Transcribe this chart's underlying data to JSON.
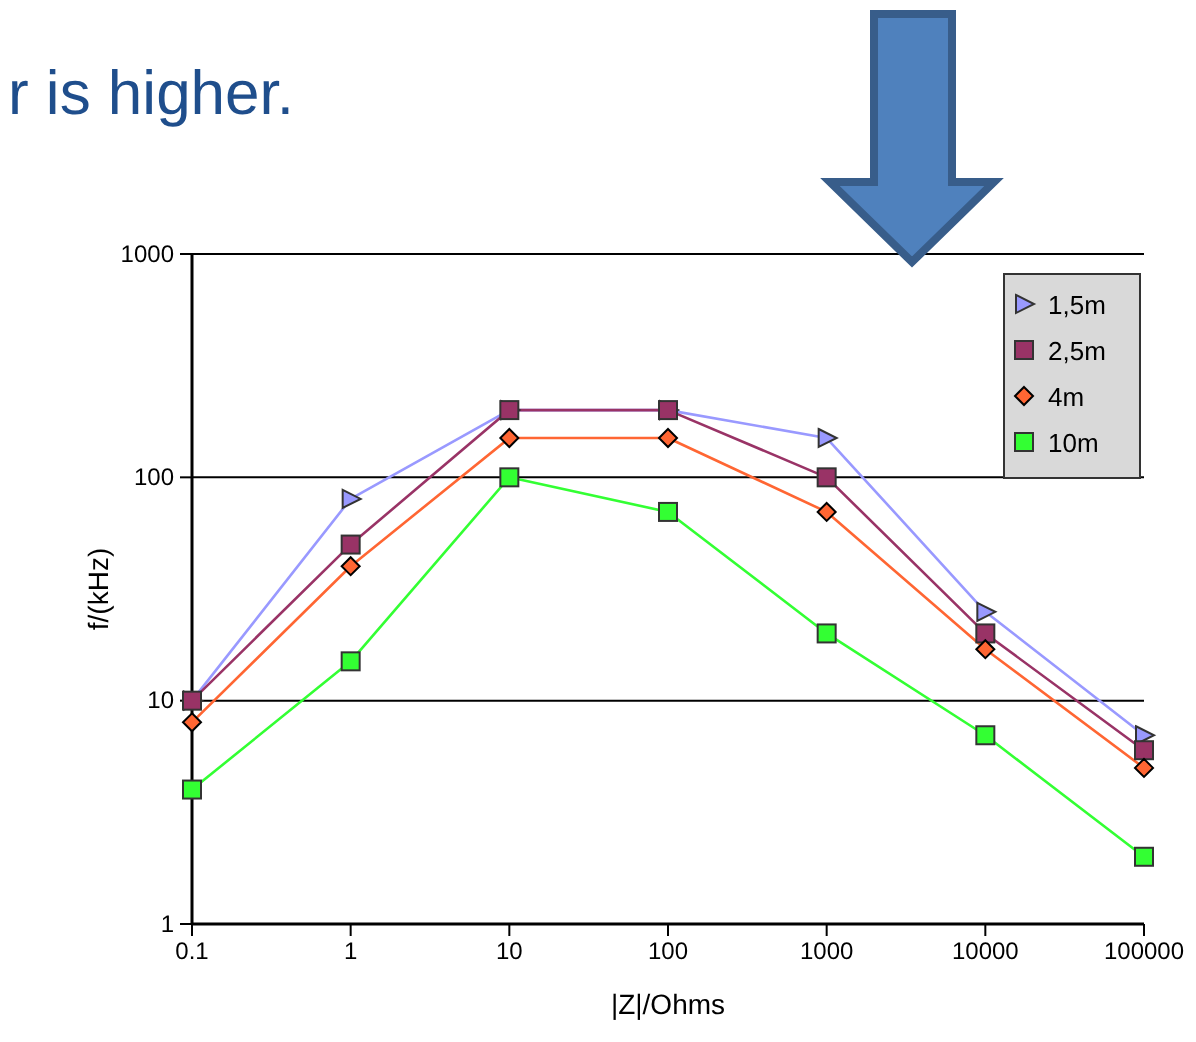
{
  "chart_data": {
    "type": "line",
    "xlabel": "|Z|/Ohms",
    "ylabel": "f/(kHz)",
    "annotations": [
      "r is higher."
    ],
    "x": [
      0.1,
      1,
      10,
      100,
      1000,
      10000,
      100000
    ],
    "log": "xy",
    "xlim": [
      0.1,
      100000
    ],
    "ylim": [
      1,
      1000
    ],
    "xticks": [
      0.1,
      1,
      10,
      100,
      1000,
      10000,
      100000
    ],
    "yticks": [
      1,
      10,
      100,
      1000
    ],
    "grid": "y",
    "legend": "top right",
    "series": [
      {
        "name": "1,5m",
        "color": "#9999ff",
        "marker": "triangle",
        "values": [
          10,
          80,
          200,
          200,
          150,
          25,
          7
        ]
      },
      {
        "name": "2,5m",
        "color": "#993366",
        "marker": "square",
        "values": [
          10,
          50,
          200,
          200,
          100,
          20,
          6
        ]
      },
      {
        "name": "4m",
        "color": "#ff6633",
        "marker": "diamond",
        "values": [
          8,
          40,
          150,
          150,
          70,
          17,
          5
        ]
      },
      {
        "name": "10m",
        "color": "#33ff33",
        "marker": "square",
        "values": [
          4,
          15,
          100,
          70,
          20,
          7,
          2
        ]
      }
    ]
  }
}
